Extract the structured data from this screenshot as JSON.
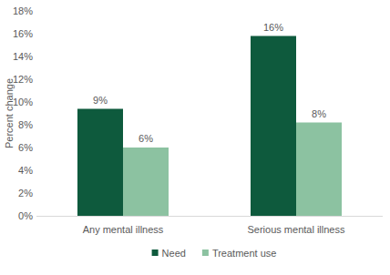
{
  "chart_data": {
    "type": "bar",
    "y_label": "Percent change",
    "categories": [
      "Any mental illness",
      "Serious mental illness"
    ],
    "series": [
      {
        "name": "Need",
        "color": "#0e5a3d",
        "values": [
          9.4,
          15.8
        ],
        "value_labels": [
          "9%",
          "16%"
        ]
      },
      {
        "name": "Treatment use",
        "color": "#8cc2a1",
        "values": [
          6.0,
          8.2
        ],
        "value_labels": [
          "6%",
          "8%"
        ]
      }
    ],
    "ylim": [
      0,
      18
    ],
    "yticks": [
      {
        "value": 0,
        "label": "0%"
      },
      {
        "value": 2,
        "label": "2%"
      },
      {
        "value": 4,
        "label": "4%"
      },
      {
        "value": 6,
        "label": "6%"
      },
      {
        "value": 8,
        "label": "8%"
      },
      {
        "value": 10,
        "label": "10%"
      },
      {
        "value": 12,
        "label": "12%"
      },
      {
        "value": 14,
        "label": "14%"
      },
      {
        "value": 16,
        "label": "16%"
      },
      {
        "value": 18,
        "label": "18%"
      }
    ],
    "grid": false,
    "legend": "bottom",
    "data_labels": true
  }
}
